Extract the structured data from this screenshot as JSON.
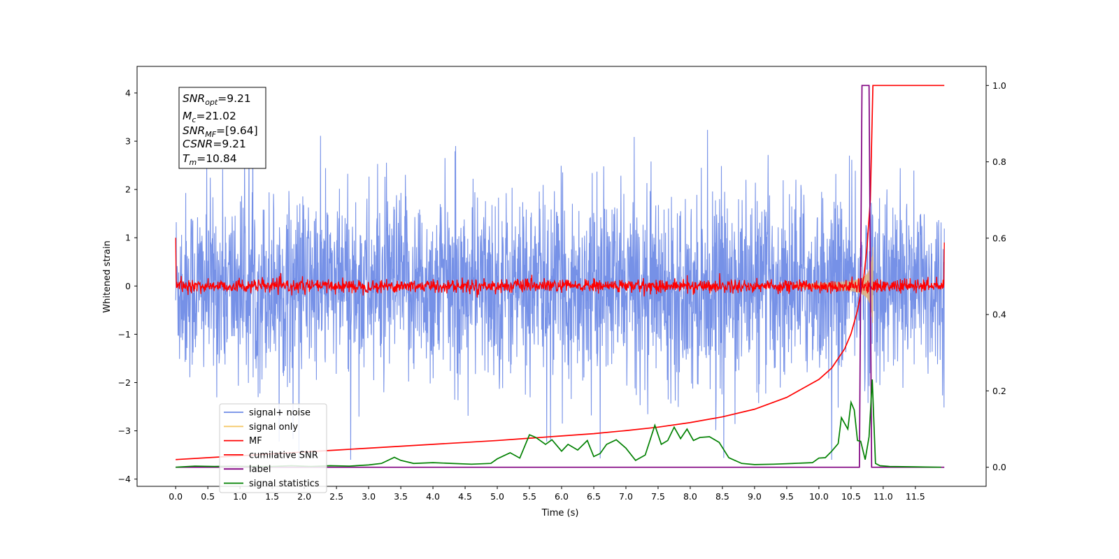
{
  "chart_data": {
    "type": "line",
    "xlabel": "Time (s)",
    "ylabel_left": "Whitened strain",
    "xlim": [
      -0.6,
      12.6
    ],
    "ylim_left": [
      -4.15,
      4.55
    ],
    "ylim_right": [
      -0.05,
      1.05
    ],
    "x_ticks": [
      0.0,
      0.5,
      1.0,
      1.5,
      2.0,
      2.5,
      3.0,
      3.5,
      4.0,
      4.5,
      5.0,
      5.5,
      6.0,
      6.5,
      7.0,
      7.5,
      8.0,
      8.5,
      9.0,
      9.5,
      10.0,
      10.5,
      11.0,
      11.5
    ],
    "x_tick_labels": [
      "0.0",
      "0.5",
      "1.0",
      "1.5",
      "2.0",
      "2.5",
      "3.0",
      "3.5",
      "4.0",
      "4.5",
      "5.0",
      "5.5",
      "6.0",
      "6.5",
      "7.0",
      "7.5",
      "8.0",
      "8.5",
      "9.0",
      "9.5",
      "10.0",
      "10.5",
      "11.0",
      "11.5"
    ],
    "y_ticks_left": [
      -4,
      -3,
      -2,
      -1,
      0,
      1,
      2,
      3,
      4
    ],
    "y_tick_labels_left": [
      "−4",
      "−3",
      "−2",
      "−1",
      "0",
      "1",
      "2",
      "3",
      "4"
    ],
    "y_ticks_right": [
      0.0,
      0.2,
      0.4,
      0.6,
      0.8,
      1.0
    ],
    "y_tick_labels_right": [
      "0.0",
      "0.2",
      "0.4",
      "0.6",
      "0.8",
      "1.0"
    ],
    "legend_position": "lower-left",
    "legend": [
      {
        "label": "signal+ noise",
        "color": "#6f8be6"
      },
      {
        "label": "signal only",
        "color": "#f5c96a"
      },
      {
        "label": "MF",
        "color": "#ff0000"
      },
      {
        "label": "cumilative SNR",
        "color": "#ff0000"
      },
      {
        "label": "label",
        "color": "#800080"
      },
      {
        "label": "signal statistics",
        "color": "#008000"
      }
    ],
    "info_box": {
      "snr_opt": "9.21",
      "mc": "21.02",
      "snr_mf": "[9.64]",
      "csnr": "9.21",
      "tm": "10.84"
    },
    "series": [
      {
        "name": "cumilative SNR",
        "axis": "right",
        "x": [
          0.0,
          0.5,
          1.0,
          1.5,
          2.0,
          2.5,
          3.0,
          3.5,
          4.0,
          4.5,
          5.0,
          5.5,
          6.0,
          6.5,
          7.0,
          7.5,
          8.0,
          8.5,
          9.0,
          9.5,
          10.0,
          10.2,
          10.4,
          10.5,
          10.6,
          10.7,
          10.75,
          10.8,
          10.84,
          10.85,
          11.0,
          11.5,
          11.95
        ],
        "y": [
          0.02,
          0.025,
          0.03,
          0.035,
          0.04,
          0.045,
          0.05,
          0.055,
          0.06,
          0.065,
          0.07,
          0.076,
          0.082,
          0.088,
          0.096,
          0.105,
          0.117,
          0.132,
          0.152,
          0.183,
          0.23,
          0.26,
          0.31,
          0.35,
          0.41,
          0.5,
          0.58,
          0.7,
          1.0,
          1.0,
          1.0,
          1.0,
          1.0
        ]
      },
      {
        "name": "label",
        "axis": "right",
        "x": [
          0.0,
          10.63,
          10.67,
          10.78,
          10.82,
          11.95
        ],
        "y": [
          0.0,
          0.0,
          1.0,
          1.0,
          0.0,
          0.0
        ]
      },
      {
        "name": "signal statistics",
        "axis": "right",
        "x": [
          0.0,
          0.3,
          0.6,
          0.9,
          1.2,
          1.5,
          1.8,
          2.1,
          2.4,
          2.7,
          3.0,
          3.2,
          3.4,
          3.5,
          3.7,
          4.0,
          4.3,
          4.6,
          4.9,
          5.0,
          5.2,
          5.35,
          5.5,
          5.6,
          5.75,
          5.85,
          6.0,
          6.1,
          6.25,
          6.4,
          6.5,
          6.6,
          6.7,
          6.85,
          7.0,
          7.15,
          7.3,
          7.45,
          7.55,
          7.65,
          7.75,
          7.85,
          7.95,
          8.05,
          8.15,
          8.3,
          8.45,
          8.6,
          8.8,
          9.0,
          9.3,
          9.6,
          9.9,
          10.0,
          10.1,
          10.2,
          10.3,
          10.35,
          10.45,
          10.5,
          10.55,
          10.6,
          10.65,
          10.72,
          10.78,
          10.83,
          10.88,
          10.95,
          11.1,
          11.5,
          11.9
        ],
        "y": [
          0.0,
          0.003,
          0.002,
          0.003,
          0.002,
          0.002,
          0.004,
          0.002,
          0.004,
          0.003,
          0.006,
          0.01,
          0.026,
          0.018,
          0.01,
          0.012,
          0.01,
          0.008,
          0.01,
          0.022,
          0.038,
          0.024,
          0.085,
          0.078,
          0.06,
          0.072,
          0.042,
          0.06,
          0.045,
          0.07,
          0.028,
          0.036,
          0.06,
          0.072,
          0.05,
          0.018,
          0.032,
          0.11,
          0.06,
          0.07,
          0.105,
          0.075,
          0.1,
          0.07,
          0.078,
          0.08,
          0.065,
          0.025,
          0.01,
          0.007,
          0.008,
          0.01,
          0.012,
          0.024,
          0.025,
          0.042,
          0.062,
          0.13,
          0.1,
          0.17,
          0.15,
          0.07,
          0.068,
          0.02,
          0.08,
          0.23,
          0.01,
          0.004,
          0.002,
          0.001,
          0.0
        ]
      }
    ]
  }
}
